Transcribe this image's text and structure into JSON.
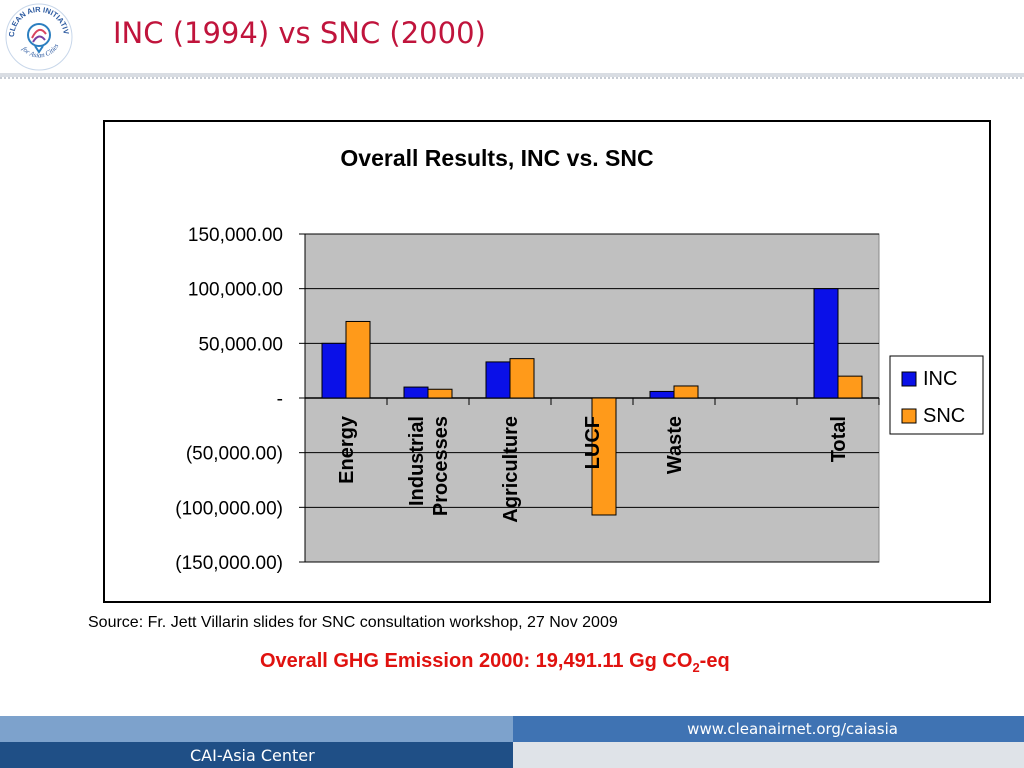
{
  "header": {
    "title": "INC (1994) vs SNC (2000)",
    "logo_ring_text": "CLEAN AIR INITIATIVE",
    "logo_sub_text": "for Asian Cities"
  },
  "chart_data": {
    "type": "bar",
    "title": "Overall Results, INC vs. SNC",
    "categories": [
      "Energy",
      "Industrial Processes",
      "Agriculture",
      "LUCF",
      "Waste",
      "",
      "Total"
    ],
    "category_lines": [
      [
        "Energy"
      ],
      [
        "Industrial",
        "Processes"
      ],
      [
        "Agriculture"
      ],
      [
        "LUCF"
      ],
      [
        "Waste"
      ],
      [
        ""
      ],
      [
        "Total"
      ]
    ],
    "series": [
      {
        "name": "INC",
        "color": "#0a10e8",
        "values": [
          50000,
          10000,
          33000,
          null,
          6000,
          null,
          100000
        ]
      },
      {
        "name": "SNC",
        "color": "#ff9a1a",
        "values": [
          70000,
          8000,
          36000,
          -107000,
          11000,
          null,
          20000
        ]
      }
    ],
    "ylim": [
      -150000,
      150000
    ],
    "yticks": [
      150000,
      100000,
      50000,
      0,
      -50000,
      -100000,
      -150000
    ],
    "ytick_labels": [
      "150,000.00",
      "100,000.00",
      "50,000.00",
      "-",
      "(50,000.00)",
      "(100,000.00)",
      "(150,000.00)"
    ],
    "xlabel": "",
    "ylabel": "",
    "grid": true,
    "legend_position": "right",
    "plot_background": "#c0c0c0"
  },
  "source": "Source: Fr. Jett Villarin slides for SNC consultation workshop, 27 Nov 2009",
  "highlight": {
    "text": "Overall GHG Emission 2000:  19,491.11 Gg CO",
    "subscript": "2",
    "suffix": "-eq",
    "color": "#e0120f"
  },
  "footer": {
    "url": "www.cleanairnet.org/caiasia",
    "org": "CAI-Asia Center"
  }
}
